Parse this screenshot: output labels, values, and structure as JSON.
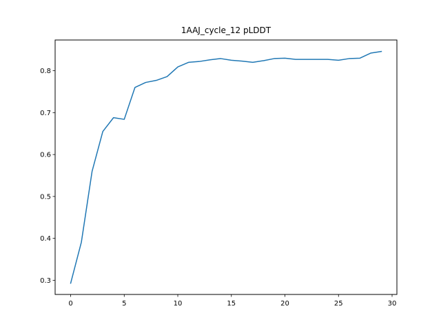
{
  "chart_data": {
    "type": "line",
    "title": "1AAJ_cycle_12 pLDDT",
    "xlabel": "",
    "ylabel": "",
    "xlim": [
      -1.45,
      30.45
    ],
    "ylim": [
      0.2662,
      0.8733
    ],
    "grid": false,
    "x_ticks": [
      0,
      5,
      10,
      15,
      20,
      25,
      30
    ],
    "y_ticks": [
      0.3,
      0.4,
      0.5,
      0.6,
      0.7,
      0.8
    ],
    "y_tick_labels": [
      "0.3",
      "0.4",
      "0.5",
      "0.6",
      "0.7",
      "0.8"
    ],
    "series": [
      {
        "color": "#1f77b4",
        "x": [
          0,
          1,
          2,
          3,
          4,
          5,
          6,
          7,
          8,
          9,
          10,
          11,
          12,
          13,
          14,
          15,
          16,
          17,
          18,
          19,
          20,
          21,
          22,
          23,
          24,
          25,
          26,
          27,
          28,
          29
        ],
        "y": [
          0.293,
          0.391,
          0.56,
          0.655,
          0.688,
          0.684,
          0.76,
          0.772,
          0.777,
          0.786,
          0.809,
          0.82,
          0.822,
          0.826,
          0.829,
          0.825,
          0.823,
          0.82,
          0.824,
          0.829,
          0.83,
          0.827,
          0.827,
          0.827,
          0.827,
          0.825,
          0.829,
          0.83,
          0.842,
          0.846
        ]
      }
    ]
  }
}
